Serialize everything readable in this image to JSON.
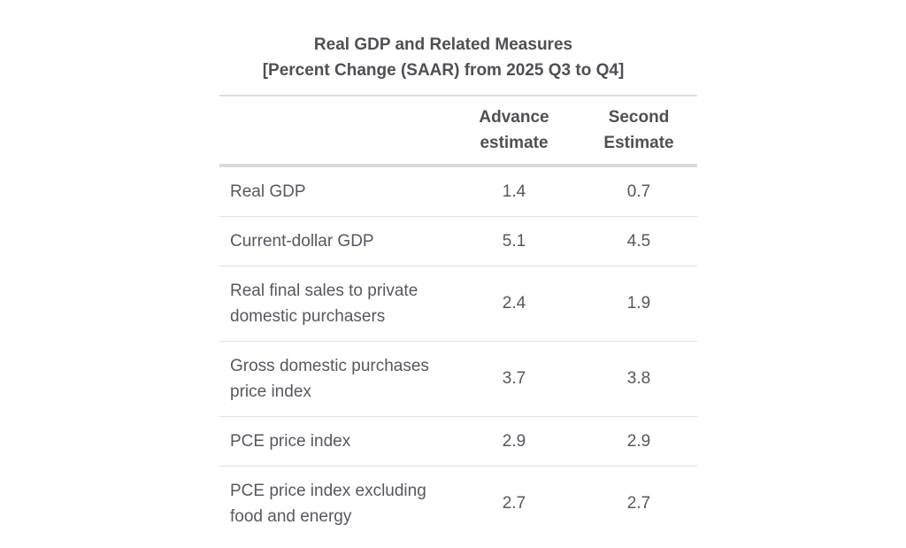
{
  "title": {
    "line1": "Real GDP and Related Measures",
    "line2": "[Percent Change (SAAR) from 2025 Q3 to Q4]"
  },
  "table": {
    "column_headers": [
      "Advance estimate",
      "Second Estimate"
    ],
    "rows": [
      {
        "label": "Real GDP",
        "advance": "1.4",
        "second": "0.7"
      },
      {
        "label": "Current-dollar GDP",
        "advance": "5.1",
        "second": "4.5"
      },
      {
        "label": "Real final sales to private domestic purchasers",
        "advance": "2.4",
        "second": "1.9"
      },
      {
        "label": "Gross domestic purchases price index",
        "advance": "3.7",
        "second": "3.8"
      },
      {
        "label": "PCE price index",
        "advance": "2.9",
        "second": "2.9"
      },
      {
        "label": "PCE price index excluding food and energy",
        "advance": "2.7",
        "second": "2.7"
      }
    ]
  },
  "colors": {
    "text": "#565860",
    "heading": "#4e5054",
    "rule_thin": "#e2e2e2",
    "rule_thick": "#d9d9d9",
    "background": "#ffffff"
  },
  "chart_data": {
    "type": "table",
    "title": "Real GDP and Related Measures",
    "subtitle": "[Percent Change (SAAR) from 2025 Q3 to Q4]",
    "categories": [
      "Real GDP",
      "Current-dollar GDP",
      "Real final sales to private domestic purchasers",
      "Gross domestic purchases price index",
      "PCE price index",
      "PCE price index excluding food and energy"
    ],
    "series": [
      {
        "name": "Advance estimate",
        "values": [
          1.4,
          5.1,
          2.4,
          3.7,
          2.9,
          2.7
        ]
      },
      {
        "name": "Second Estimate",
        "values": [
          0.7,
          4.5,
          1.9,
          3.8,
          2.9,
          2.7
        ]
      }
    ],
    "layout": {
      "grid": "horizontal row separators",
      "legend": "none",
      "units": "percent change (SAAR)"
    }
  }
}
